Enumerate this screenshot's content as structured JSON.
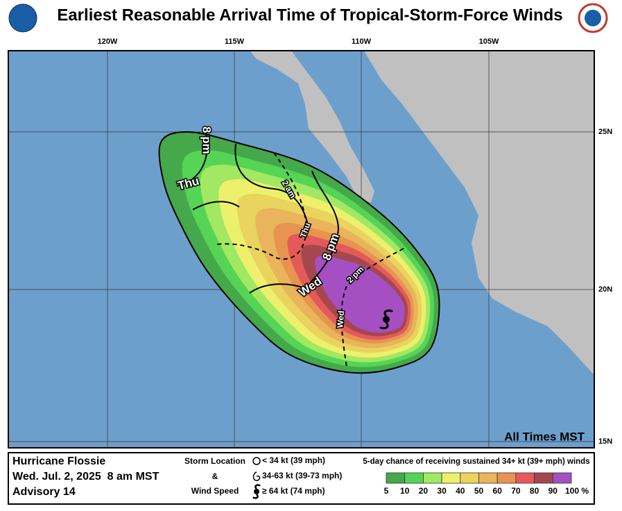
{
  "header": {
    "title": "Earliest Reasonable Arrival Time of Tropical-Storm-Force Winds"
  },
  "map": {
    "lon_labels": [
      "120W",
      "115W",
      "110W",
      "105W"
    ],
    "lat_labels": [
      "25N",
      "20N",
      "15N"
    ],
    "contour_labels": [
      "8 pm",
      "Thu",
      "2 am",
      "Thu",
      "8 pm",
      "Wed",
      "2 pm",
      "Wed"
    ],
    "time_note": "All Times MST",
    "land_color": "#c0c0c0",
    "ocean_color": "#6d9fcc"
  },
  "info": {
    "storm_name": "Hurricane Flossie",
    "advisory_time": "Wed. Jul. 2, 2025  8 am MST",
    "advisory": "Advisory 14"
  },
  "key": {
    "lines": [
      "Storm Location",
      "&",
      "Wind Speed"
    ],
    "items": [
      "< 34 kt (39 mph)",
      "34-63 kt (39-73 mph)",
      "≥ 64 kt (74 mph)"
    ]
  },
  "scale": {
    "caption": "5-day chance of receiving sustained 34+ kt (39+ mph) winds",
    "labels": [
      "5",
      "10",
      "20",
      "30",
      "40",
      "50",
      "60",
      "70",
      "80",
      "90",
      "100 %"
    ],
    "colors": [
      "#45a84a",
      "#55d456",
      "#a2e862",
      "#edf06c",
      "#e8d45e",
      "#e9b45b",
      "#e6944f",
      "#e45a5a",
      "#a4474f",
      "#a550c2"
    ]
  }
}
